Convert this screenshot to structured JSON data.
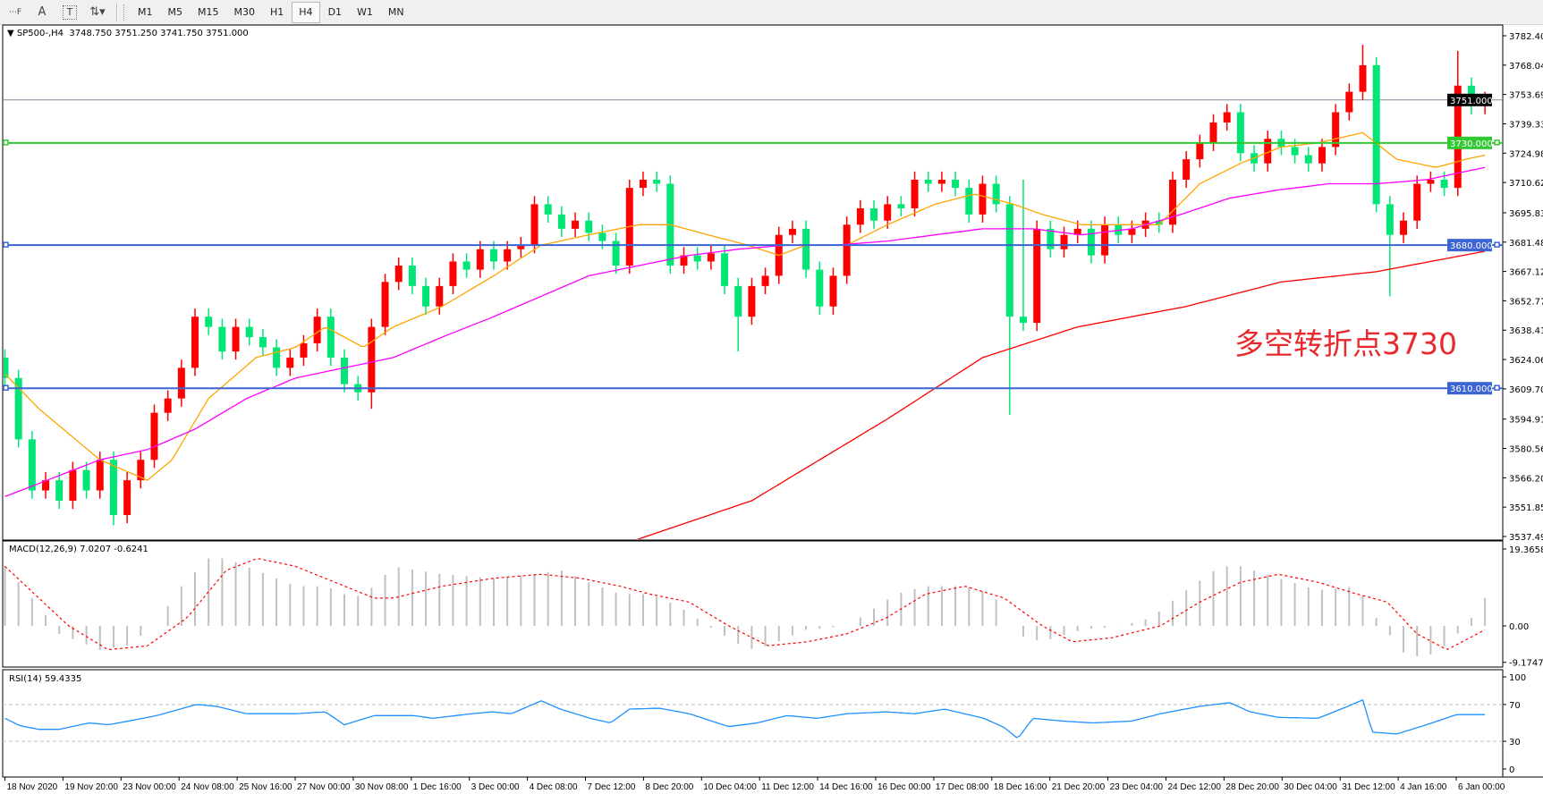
{
  "toolbar": {
    "tools": [
      {
        "name": "period-separator-icon",
        "glyph": "⋯F"
      },
      {
        "name": "text-tool-icon",
        "glyph": "A"
      },
      {
        "name": "text-label-icon",
        "glyph": "T"
      },
      {
        "name": "arrows-tool-icon",
        "glyph": "⇅▾"
      }
    ],
    "timeframes": [
      "M1",
      "M5",
      "M15",
      "M30",
      "H1",
      "H4",
      "D1",
      "W1",
      "MN"
    ],
    "active_timeframe": "H4"
  },
  "legend": {
    "symbol": "SP500-,H4",
    "ohlc": "3748.750 3751.250 3741.750 3751.000"
  },
  "annotation": "多空转折点3730",
  "colors": {
    "bull": "#ff0000",
    "bear": "#00e676",
    "ma_fast": "#ffa500",
    "ma_mid": "#ff00ff",
    "ma_slow": "#ff0000",
    "level_green": "#32c832",
    "level_blue": "#3c64d2",
    "macd_hist": "#c0c0c0",
    "macd_signal": "#ff0000",
    "rsi": "#1e90ff"
  },
  "chart_data": [
    {
      "type": "candlestick",
      "title": "SP500-,H4",
      "ylim": [
        3537.495,
        3782.4
      ],
      "price_ticks": [
        "3782.400",
        "3768.045",
        "3753.690",
        "3739.335",
        "3724.980",
        "3710.625",
        "3695.835",
        "3681.480",
        "3667.125",
        "3652.770",
        "3638.415",
        "3624.060",
        "3609.705",
        "3594.915",
        "3580.560",
        "3566.205",
        "3551.850",
        "3537.495"
      ],
      "time_ticks": [
        "18 Nov 2020",
        "19 Nov 20:00",
        "23 Nov 00:00",
        "24 Nov 08:00",
        "25 Nov 16:00",
        "27 Nov 00:00",
        "30 Nov 08:00",
        "1 Dec 16:00",
        "3 Dec 00:00",
        "4 Dec 08:00",
        "7 Dec 12:00",
        "8 Dec 20:00",
        "10 Dec 04:00",
        "11 Dec 12:00",
        "14 Dec 16:00",
        "16 Dec 00:00",
        "17 Dec 08:00",
        "18 Dec 16:00",
        "21 Dec 20:00",
        "23 Dec 04:00",
        "24 Dec 12:00",
        "28 Dec 20:00",
        "30 Dec 04:00",
        "31 Dec 12:00",
        "4 Jan 16:00",
        "6 Jan 00:00"
      ],
      "first_open": 3625,
      "closes": [
        3615,
        3585,
        3560,
        3565,
        3555,
        3570,
        3560,
        3575,
        3548,
        3565,
        3575,
        3598,
        3605,
        3620,
        3645,
        3640,
        3628,
        3640,
        3635,
        3630,
        3620,
        3625,
        3632,
        3645,
        3625,
        3612,
        3608,
        3640,
        3662,
        3670,
        3660,
        3650,
        3660,
        3672,
        3668,
        3678,
        3672,
        3678,
        3680,
        3700,
        3695,
        3688,
        3692,
        3686,
        3682,
        3670,
        3708,
        3712,
        3710,
        3670,
        3675,
        3672,
        3676,
        3660,
        3645,
        3660,
        3665,
        3685,
        3688,
        3668,
        3650,
        3665,
        3690,
        3698,
        3692,
        3700,
        3698,
        3712,
        3710,
        3712,
        3708,
        3695,
        3710,
        3700,
        3645,
        3642,
        3688,
        3678,
        3685,
        3688,
        3675,
        3690,
        3685,
        3688,
        3692,
        3690,
        3712,
        3722,
        3730,
        3740,
        3745,
        3725,
        3720,
        3732,
        3728,
        3724,
        3720,
        3728,
        3745,
        3755,
        3768,
        3700,
        3685,
        3692,
        3710,
        3712,
        3708,
        3758,
        3748,
        3751
      ],
      "extremes": [
        {
          "bar": 8,
          "low": 3543
        },
        {
          "bar": 27,
          "low": 3600
        },
        {
          "bar": 54,
          "low": 3628
        },
        {
          "bar": 74,
          "low": 3597
        },
        {
          "bar": 75,
          "high": 3712
        },
        {
          "bar": 100,
          "high": 3778
        },
        {
          "bar": 102,
          "low": 3655
        },
        {
          "bar": 107,
          "high": 3775
        }
      ],
      "moving_averages": [
        {
          "color_key": "ma_fast",
          "points": [
            [
              0,
              3617
            ],
            [
              2.5,
              3600
            ],
            [
              7,
              3575
            ],
            [
              10.5,
              3565
            ],
            [
              12.3,
              3575
            ],
            [
              15,
              3605
            ],
            [
              18.5,
              3625
            ],
            [
              21.4,
              3630
            ],
            [
              23.6,
              3640
            ],
            [
              26.4,
              3630
            ],
            [
              28.6,
              3640
            ],
            [
              32.2,
              3650
            ],
            [
              36,
              3665
            ],
            [
              39.5,
              3680
            ],
            [
              43,
              3685
            ],
            [
              46.7,
              3690
            ],
            [
              49,
              3690
            ],
            [
              51.8,
              3685
            ],
            [
              54.7,
              3680
            ],
            [
              57,
              3675
            ],
            [
              59,
              3680
            ],
            [
              62,
              3680
            ],
            [
              65,
              3690
            ],
            [
              68.5,
              3700
            ],
            [
              71.4,
              3705
            ],
            [
              74.3,
              3700
            ],
            [
              76.4,
              3695
            ],
            [
              79.3,
              3690
            ],
            [
              82.2,
              3690
            ],
            [
              85,
              3690
            ],
            [
              88,
              3710
            ],
            [
              91,
              3720
            ],
            [
              94,
              3728
            ],
            [
              96.7,
              3730
            ],
            [
              100,
              3735
            ],
            [
              102.5,
              3722
            ],
            [
              105.4,
              3718
            ],
            [
              107.6,
              3722
            ],
            [
              109,
              3724
            ]
          ]
        },
        {
          "color_key": "ma_mid",
          "points": [
            [
              0,
              3557
            ],
            [
              7,
              3575
            ],
            [
              10.5,
              3580
            ],
            [
              14,
              3590
            ],
            [
              17.8,
              3605
            ],
            [
              21.4,
              3615
            ],
            [
              25,
              3620
            ],
            [
              28.6,
              3625
            ],
            [
              32.2,
              3635
            ],
            [
              36,
              3645
            ],
            [
              39.5,
              3655
            ],
            [
              43,
              3665
            ],
            [
              46.7,
              3670
            ],
            [
              50.4,
              3675
            ],
            [
              54,
              3678
            ],
            [
              57.6,
              3680
            ],
            [
              61.2,
              3680
            ],
            [
              65,
              3682
            ],
            [
              68.5,
              3685
            ],
            [
              72,
              3688
            ],
            [
              75.7,
              3688
            ],
            [
              79.3,
              3685
            ],
            [
              83,
              3688
            ],
            [
              86.6,
              3695
            ],
            [
              90.2,
              3703
            ],
            [
              93.8,
              3707
            ],
            [
              97.5,
              3710
            ],
            [
              101,
              3710
            ],
            [
              104.7,
              3712
            ],
            [
              109,
              3718
            ]
          ]
        },
        {
          "color_key": "ma_slow",
          "points": [
            [
              40,
              3520
            ],
            [
              47,
              3537
            ],
            [
              55,
              3555
            ],
            [
              65,
              3595
            ],
            [
              72,
              3625
            ],
            [
              79,
              3640
            ],
            [
              87,
              3650
            ],
            [
              94,
              3662
            ],
            [
              101,
              3667
            ],
            [
              109,
              3677
            ]
          ]
        }
      ],
      "levels": [
        {
          "price": 3730,
          "label": "3730.000",
          "color_key": "level_green"
        },
        {
          "price": 3680,
          "label": "3680.000",
          "color_key": "level_blue"
        },
        {
          "price": 3610,
          "label": "3610.000",
          "color_key": "level_blue"
        }
      ],
      "current_price": {
        "price": 3751,
        "label": "3751.000"
      }
    },
    {
      "type": "bar+line",
      "title": "MACD(12,26,9) 7.0207 -0.6241",
      "ylim": [
        -9.1747,
        19.3658
      ],
      "ticks": [
        "19.3658",
        "0.00",
        "-9.1747"
      ],
      "histogram": [
        [
          0,
          15
        ],
        [
          2.5,
          5
        ],
        [
          4,
          -2
        ],
        [
          7,
          -6
        ],
        [
          9,
          -5
        ],
        [
          11,
          0
        ],
        [
          13,
          10
        ],
        [
          15,
          17
        ],
        [
          16.3,
          17
        ],
        [
          18.5,
          14
        ],
        [
          21.4,
          10
        ],
        [
          23.6,
          10
        ],
        [
          25.7,
          7
        ],
        [
          27.2,
          10
        ],
        [
          28.6,
          15
        ],
        [
          32.2,
          13
        ],
        [
          36,
          12
        ],
        [
          38.8,
          13
        ],
        [
          41,
          14
        ],
        [
          43,
          11
        ],
        [
          45.3,
          8
        ],
        [
          47.5,
          8
        ],
        [
          49.6,
          5
        ],
        [
          51.8,
          0
        ],
        [
          54.7,
          -6
        ],
        [
          56.2,
          -5
        ],
        [
          59,
          -1
        ],
        [
          62,
          0
        ],
        [
          63.4,
          3
        ],
        [
          65.6,
          8
        ],
        [
          67.8,
          10
        ],
        [
          70.7,
          10
        ],
        [
          72.8,
          8
        ],
        [
          74.3,
          -2
        ],
        [
          76.4,
          -4
        ],
        [
          79.3,
          -1
        ],
        [
          82.2,
          0
        ],
        [
          84.4,
          2
        ],
        [
          86.6,
          8
        ],
        [
          89.5,
          15
        ],
        [
          91,
          15
        ],
        [
          93.8,
          12
        ],
        [
          96.7,
          9
        ],
        [
          99.6,
          10
        ],
        [
          101,
          2
        ],
        [
          103.3,
          -8
        ],
        [
          105.4,
          -7
        ],
        [
          107.6,
          0
        ],
        [
          109,
          7
        ]
      ],
      "signal": [
        [
          0,
          15
        ],
        [
          2.5,
          7
        ],
        [
          4.7,
          0
        ],
        [
          7.6,
          -6
        ],
        [
          10.5,
          -5
        ],
        [
          13.4,
          2
        ],
        [
          16.3,
          14
        ],
        [
          18.6,
          17
        ],
        [
          21.4,
          15
        ],
        [
          24.3,
          11
        ],
        [
          27.2,
          7
        ],
        [
          28.6,
          7
        ],
        [
          32.2,
          10
        ],
        [
          36,
          12
        ],
        [
          39.5,
          13
        ],
        [
          42.4,
          12
        ],
        [
          45.3,
          10
        ],
        [
          47.5,
          8
        ],
        [
          50.4,
          6
        ],
        [
          53.3,
          0
        ],
        [
          56.2,
          -5
        ],
        [
          59.1,
          -4
        ],
        [
          62,
          -2
        ],
        [
          64.9,
          2
        ],
        [
          67.8,
          8
        ],
        [
          70.7,
          10
        ],
        [
          73.6,
          7
        ],
        [
          76.4,
          0
        ],
        [
          78.6,
          -4
        ],
        [
          81.5,
          -3
        ],
        [
          85.1,
          0
        ],
        [
          88,
          6
        ],
        [
          91,
          11
        ],
        [
          93.8,
          13
        ],
        [
          96.7,
          11
        ],
        [
          99.6,
          8
        ],
        [
          101.8,
          6
        ],
        [
          104,
          -2
        ],
        [
          106.2,
          -6
        ],
        [
          109,
          -1
        ]
      ]
    },
    {
      "type": "line",
      "title": "RSI(14) 59.4335",
      "ylim": [
        0,
        100
      ],
      "ticks": [
        "100",
        "70",
        "30",
        "0"
      ],
      "levels": [
        70,
        30
      ],
      "values": [
        [
          0,
          55
        ],
        [
          1.1,
          47
        ],
        [
          2.5,
          43
        ],
        [
          4,
          43
        ],
        [
          6.2,
          50
        ],
        [
          7.6,
          48
        ],
        [
          9.1,
          52
        ],
        [
          11.2,
          58
        ],
        [
          14.1,
          70
        ],
        [
          15.6,
          68
        ],
        [
          17.8,
          60
        ],
        [
          21.4,
          60
        ],
        [
          23.6,
          62
        ],
        [
          25,
          48
        ],
        [
          27.2,
          58
        ],
        [
          30.1,
          58
        ],
        [
          31.5,
          55
        ],
        [
          34.4,
          60
        ],
        [
          35.9,
          62
        ],
        [
          37.3,
          60
        ],
        [
          39.5,
          74
        ],
        [
          40.9,
          65
        ],
        [
          43.1,
          55
        ],
        [
          44.6,
          50
        ],
        [
          46,
          65
        ],
        [
          48.2,
          66
        ],
        [
          50.4,
          60
        ],
        [
          53.3,
          46
        ],
        [
          55.4,
          50
        ],
        [
          57.6,
          58
        ],
        [
          59.8,
          55
        ],
        [
          62,
          60
        ],
        [
          64.9,
          62
        ],
        [
          67,
          60
        ],
        [
          69.2,
          65
        ],
        [
          72.1,
          55
        ],
        [
          73.6,
          45
        ],
        [
          74.6,
          33
        ],
        [
          75.7,
          55
        ],
        [
          77.9,
          52
        ],
        [
          80.1,
          50
        ],
        [
          83,
          52
        ],
        [
          85.1,
          60
        ],
        [
          88,
          68
        ],
        [
          90.2,
          72
        ],
        [
          91.7,
          62
        ],
        [
          93.8,
          56
        ],
        [
          96.7,
          55
        ],
        [
          98.9,
          68
        ],
        [
          100,
          75
        ],
        [
          100.7,
          40
        ],
        [
          102.5,
          38
        ],
        [
          104.7,
          48
        ],
        [
          106.9,
          59
        ],
        [
          109,
          59
        ]
      ]
    }
  ]
}
